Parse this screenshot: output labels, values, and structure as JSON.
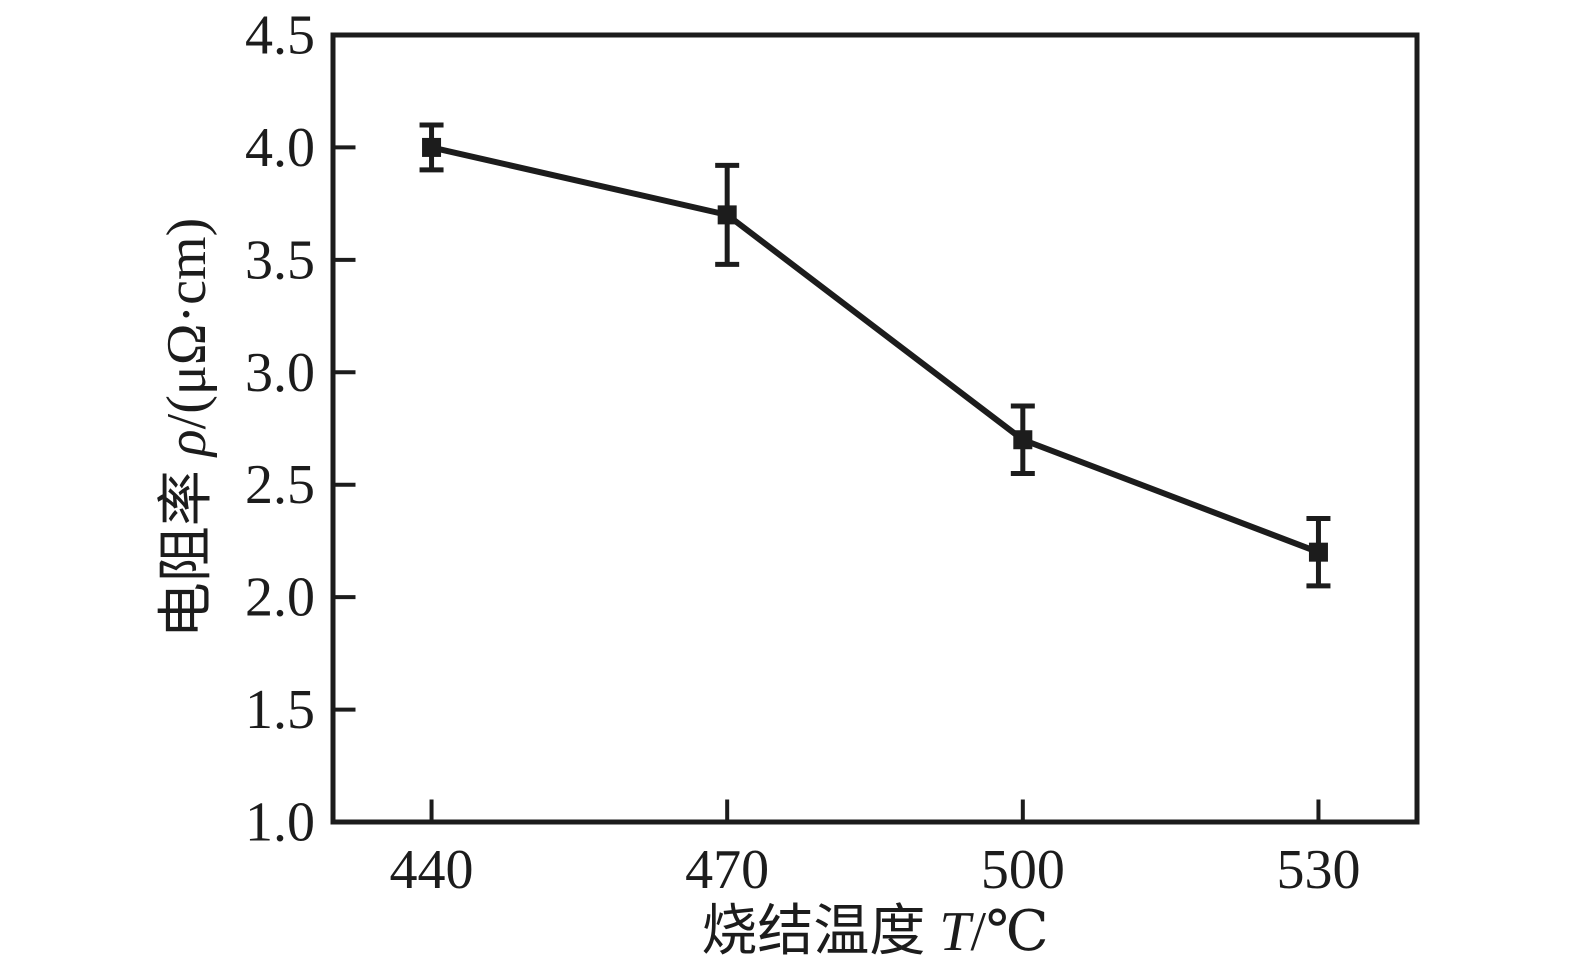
{
  "figure": {
    "background": "#ffffff",
    "ink_color": "#1c1c1c"
  },
  "chart_data": {
    "type": "line",
    "title": "",
    "x": [
      440,
      470,
      500,
      530
    ],
    "series": [
      {
        "name": "resistivity-vs-sintering-temperature",
        "values": [
          4.0,
          3.7,
          2.7,
          2.2
        ],
        "yerr": [
          0.1,
          0.22,
          0.15,
          0.15
        ],
        "marker": "filled-square",
        "color": "#1c1c1c"
      }
    ],
    "xlabel": "烧结温度 T/℃",
    "ylabel": "电阻率 ρ/(μΩ·cm)",
    "xlabel_parts": {
      "prefix": "烧结温度 ",
      "symbol": "T",
      "suffix": "/℃"
    },
    "ylabel_parts": {
      "prefix": "电阻率 ",
      "symbol": "ρ",
      "suffix": "/(μΩ·cm)"
    },
    "xlim": [
      430,
      540
    ],
    "ylim": [
      1.0,
      4.5
    ],
    "xticks": [
      440,
      470,
      500,
      530
    ],
    "yticks": [
      1.0,
      1.5,
      2.0,
      2.5,
      3.0,
      3.5,
      4.0,
      4.5
    ],
    "ytick_decimals": 1,
    "grid": false,
    "legend": "none",
    "error_bars": true,
    "frame": "full-box",
    "tick_direction": "in"
  }
}
